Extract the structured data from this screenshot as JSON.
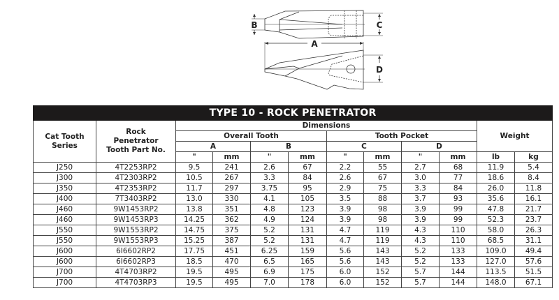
{
  "drawing_labels": {
    "a": "A",
    "b": "B",
    "c": "C",
    "d": "D"
  },
  "table": {
    "title": "TYPE 10 - ROCK PENETRATOR",
    "headers": {
      "series": "Cat Tooth Series",
      "part": "Rock Penetrator Tooth Part No.",
      "dimensions": "Dimensions",
      "overall": "Overall Tooth",
      "pocket": "Tooth Pocket",
      "weight": "Weight",
      "a": "A",
      "b": "B",
      "c": "C",
      "d": "D",
      "units": [
        "\"",
        "mm",
        "\"",
        "mm",
        "\"",
        "mm",
        "\"",
        "mm",
        "lb",
        "kg"
      ]
    },
    "rows": [
      [
        "J250",
        "4T2253RP2",
        "9.5",
        "241",
        "2.6",
        "67",
        "2.2",
        "55",
        "2.7",
        "68",
        "11.9",
        "5.4"
      ],
      [
        "J300",
        "4T2303RP2",
        "10.5",
        "267",
        "3.3",
        "84",
        "2.6",
        "67",
        "3.0",
        "77",
        "18.6",
        "8.4"
      ],
      [
        "J350",
        "4T2353RP2",
        "11.7",
        "297",
        "3.75",
        "95",
        "2.9",
        "75",
        "3.3",
        "84",
        "26.0",
        "11.8"
      ],
      [
        "J400",
        "7T3403RP2",
        "13.0",
        "330",
        "4.1",
        "105",
        "3.5",
        "88",
        "3.7",
        "93",
        "35.6",
        "16.1"
      ],
      [
        "J460",
        "9W1453RP2",
        "13.8",
        "351",
        "4.8",
        "123",
        "3.9",
        "98",
        "3.9",
        "99",
        "47.8",
        "21.7"
      ],
      [
        "J460",
        "9W1453RP3",
        "14.25",
        "362",
        "4.9",
        "124",
        "3.9",
        "98",
        "3.9",
        "99",
        "52.3",
        "23.7"
      ],
      [
        "J550",
        "9W1553RP2",
        "14.75",
        "375",
        "5.2",
        "131",
        "4.7",
        "119",
        "4.3",
        "110",
        "58.0",
        "26.3"
      ],
      [
        "J550",
        "9W1553RP3",
        "15.25",
        "387",
        "5.2",
        "131",
        "4.7",
        "119",
        "4.3",
        "110",
        "68.5",
        "31.1"
      ],
      [
        "J600",
        "6I6602RP2",
        "17.75",
        "451",
        "6.25",
        "159",
        "5.6",
        "143",
        "5.2",
        "133",
        "109.0",
        "49.4"
      ],
      [
        "J600",
        "6I6602RP3",
        "18.5",
        "470",
        "6.5",
        "165",
        "5.6",
        "143",
        "5.2",
        "133",
        "127.0",
        "57.6"
      ],
      [
        "J700",
        "4T4703RP2",
        "19.5",
        "495",
        "6.9",
        "175",
        "6.0",
        "152",
        "5.7",
        "144",
        "113.5",
        "51.5"
      ],
      [
        "J700",
        "4T4703RP3",
        "19.5",
        "495",
        "7.0",
        "178",
        "6.0",
        "152",
        "5.7",
        "144",
        "148.0",
        "67.1"
      ]
    ]
  }
}
